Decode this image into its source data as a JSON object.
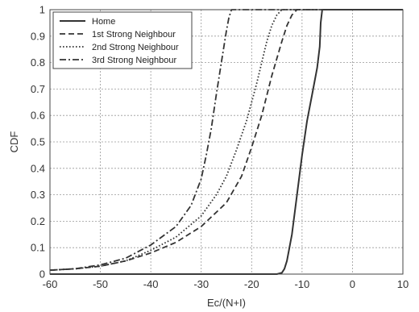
{
  "chart_data": {
    "type": "line",
    "title": "",
    "xlabel": "Ec/(N+I)",
    "ylabel": "CDF",
    "xlim": [
      -60,
      10
    ],
    "ylim": [
      0,
      1
    ],
    "xticks": [
      -60,
      -50,
      -40,
      -30,
      -20,
      -10,
      0,
      10
    ],
    "yticks": [
      0,
      0.1,
      0.2,
      0.3,
      0.4,
      0.5,
      0.6,
      0.7,
      0.8,
      0.9,
      1
    ],
    "xtick_labels": [
      "-60",
      "-50",
      "-40",
      "-30",
      "-20",
      "-10",
      "0",
      "10"
    ],
    "ytick_labels": [
      "0",
      "0.1",
      "0.2",
      "0.3",
      "0.4",
      "0.5",
      "0.6",
      "0.7",
      "0.8",
      "0.9",
      "1"
    ],
    "grid": true,
    "legend_position": "top-left",
    "series": [
      {
        "name": "Home",
        "style": "solid",
        "x": [
          -60,
          -20,
          -15,
          -14,
          -13.5,
          -13,
          -12,
          -11,
          -10,
          -9,
          -8,
          -7,
          -6.5,
          -6.3,
          -6,
          10
        ],
        "y": [
          0,
          0,
          0,
          0.005,
          0.02,
          0.05,
          0.15,
          0.3,
          0.45,
          0.58,
          0.68,
          0.78,
          0.86,
          0.95,
          1,
          1
        ]
      },
      {
        "name": "1st Strong Neighbour",
        "style": "dashed",
        "x": [
          -60,
          -55,
          -50,
          -45,
          -40,
          -35,
          -30,
          -25,
          -22,
          -20,
          -18,
          -16,
          -14,
          -13,
          -12,
          -11,
          10
        ],
        "y": [
          0.015,
          0.02,
          0.03,
          0.05,
          0.08,
          0.12,
          0.18,
          0.27,
          0.37,
          0.48,
          0.6,
          0.75,
          0.88,
          0.94,
          0.98,
          1,
          1
        ]
      },
      {
        "name": "2nd Strong Neighbour",
        "style": "dotted",
        "x": [
          -60,
          -55,
          -50,
          -45,
          -40,
          -35,
          -30,
          -27,
          -25,
          -23,
          -21,
          -20,
          -19,
          -18,
          -17,
          -16,
          -15,
          -14,
          10
        ],
        "y": [
          0.015,
          0.02,
          0.03,
          0.05,
          0.09,
          0.14,
          0.22,
          0.3,
          0.37,
          0.47,
          0.58,
          0.65,
          0.72,
          0.8,
          0.88,
          0.94,
          0.98,
          1,
          1
        ]
      },
      {
        "name": "3rd Strong Neighbour",
        "style": "dashdot",
        "x": [
          -60,
          -55,
          -50,
          -45,
          -40,
          -35,
          -32,
          -30,
          -29,
          -28,
          -27,
          -26,
          -25,
          -24.5,
          -24,
          10
        ],
        "y": [
          0.015,
          0.02,
          0.035,
          0.06,
          0.11,
          0.18,
          0.26,
          0.36,
          0.45,
          0.55,
          0.68,
          0.8,
          0.92,
          0.97,
          1,
          1
        ]
      }
    ]
  }
}
